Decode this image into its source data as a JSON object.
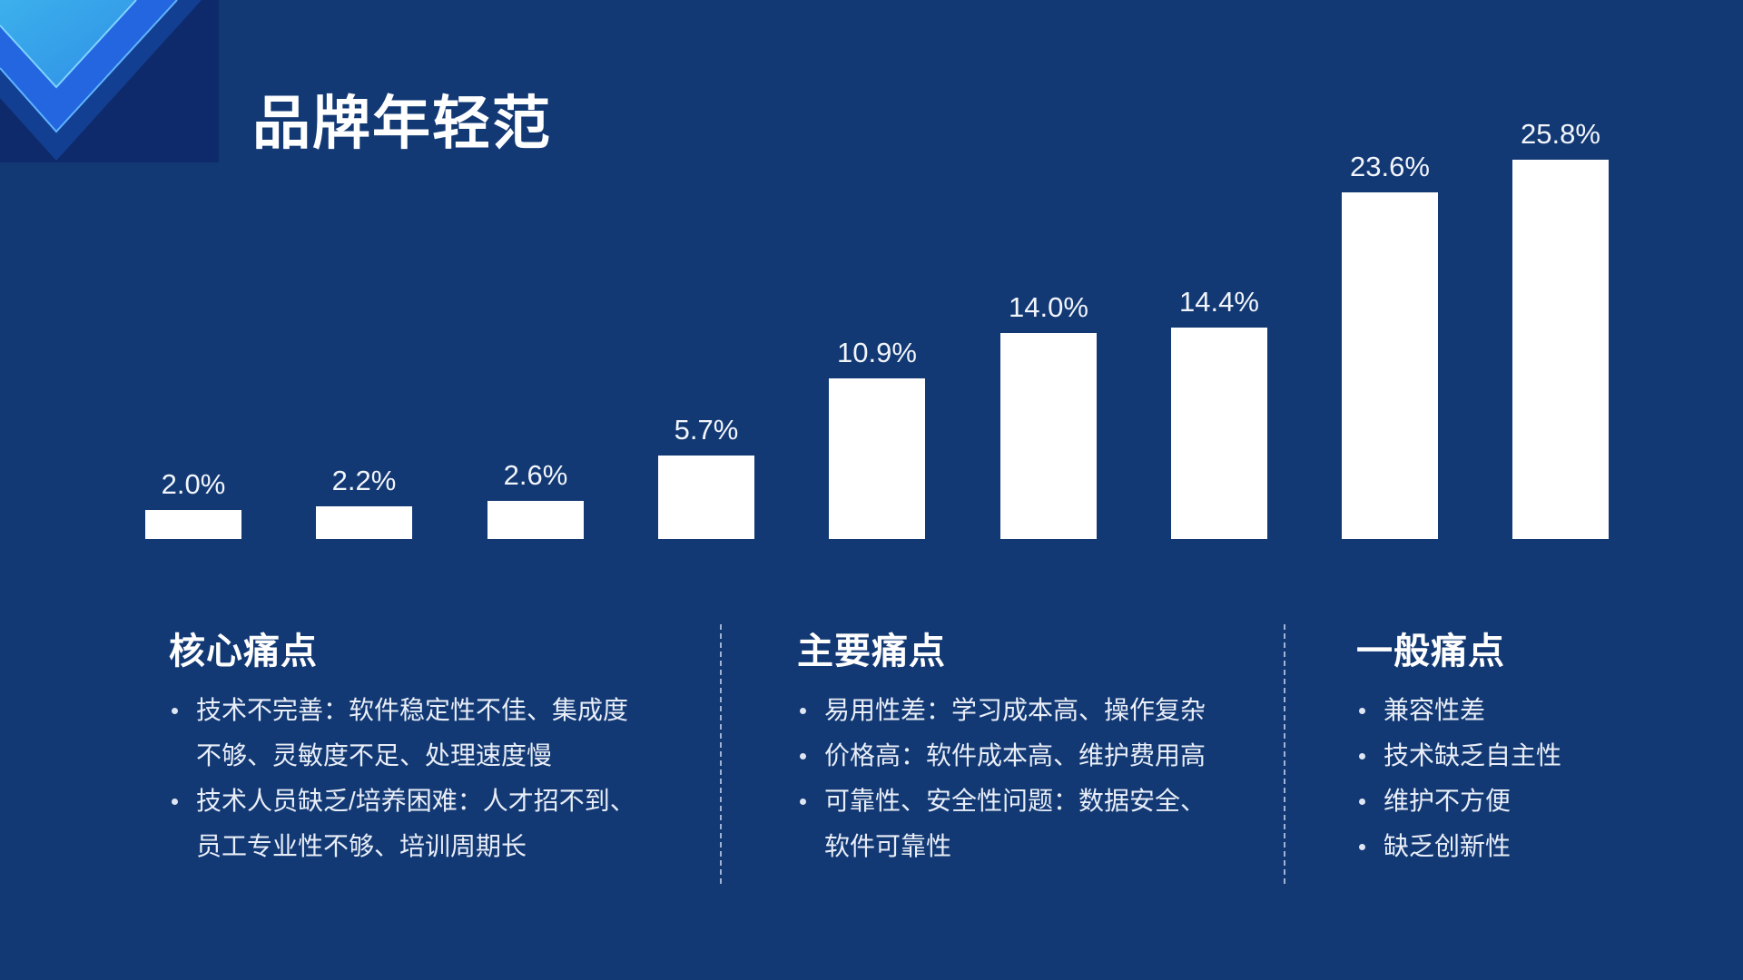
{
  "slide": {
    "title": "品牌年轻范",
    "background_color": "#123974",
    "accent_colors": [
      "#2a6fe6",
      "#3aa5e8",
      "#0e2a6a"
    ]
  },
  "chart_data": {
    "type": "bar",
    "title": "",
    "xlabel": "",
    "ylabel": "",
    "categories": [
      "",
      "",
      "",
      "",
      "",
      "",
      "",
      "",
      ""
    ],
    "values": [
      2.0,
      2.2,
      2.6,
      5.7,
      10.9,
      14.0,
      14.4,
      23.6,
      25.8
    ],
    "labels": [
      "2.0%",
      "2.2%",
      "2.6%",
      "5.7%",
      "10.9%",
      "14.0%",
      "14.4%",
      "23.6%",
      "25.8%"
    ],
    "unit": "%",
    "bar_color": "#ffffff",
    "grid": false,
    "legend": "none",
    "ylim": [
      0,
      28
    ]
  },
  "sections": [
    {
      "heading": "核心痛点",
      "items": [
        "技术不完善：软件稳定性不佳、集成度不够、灵敏度不足、处理速度慢",
        "技术人员缺乏/培养困难：人才招不到、员工专业性不够、培训周期长"
      ]
    },
    {
      "heading": "主要痛点",
      "items": [
        "易用性差：学习成本高、操作复杂",
        "价格高：软件成本高、维护费用高",
        "可靠性、安全性问题：数据安全、软件可靠性"
      ]
    },
    {
      "heading": "一般痛点",
      "items": [
        "兼容性差",
        "技术缺乏自主性",
        "维护不方便",
        "缺乏创新性"
      ]
    }
  ]
}
